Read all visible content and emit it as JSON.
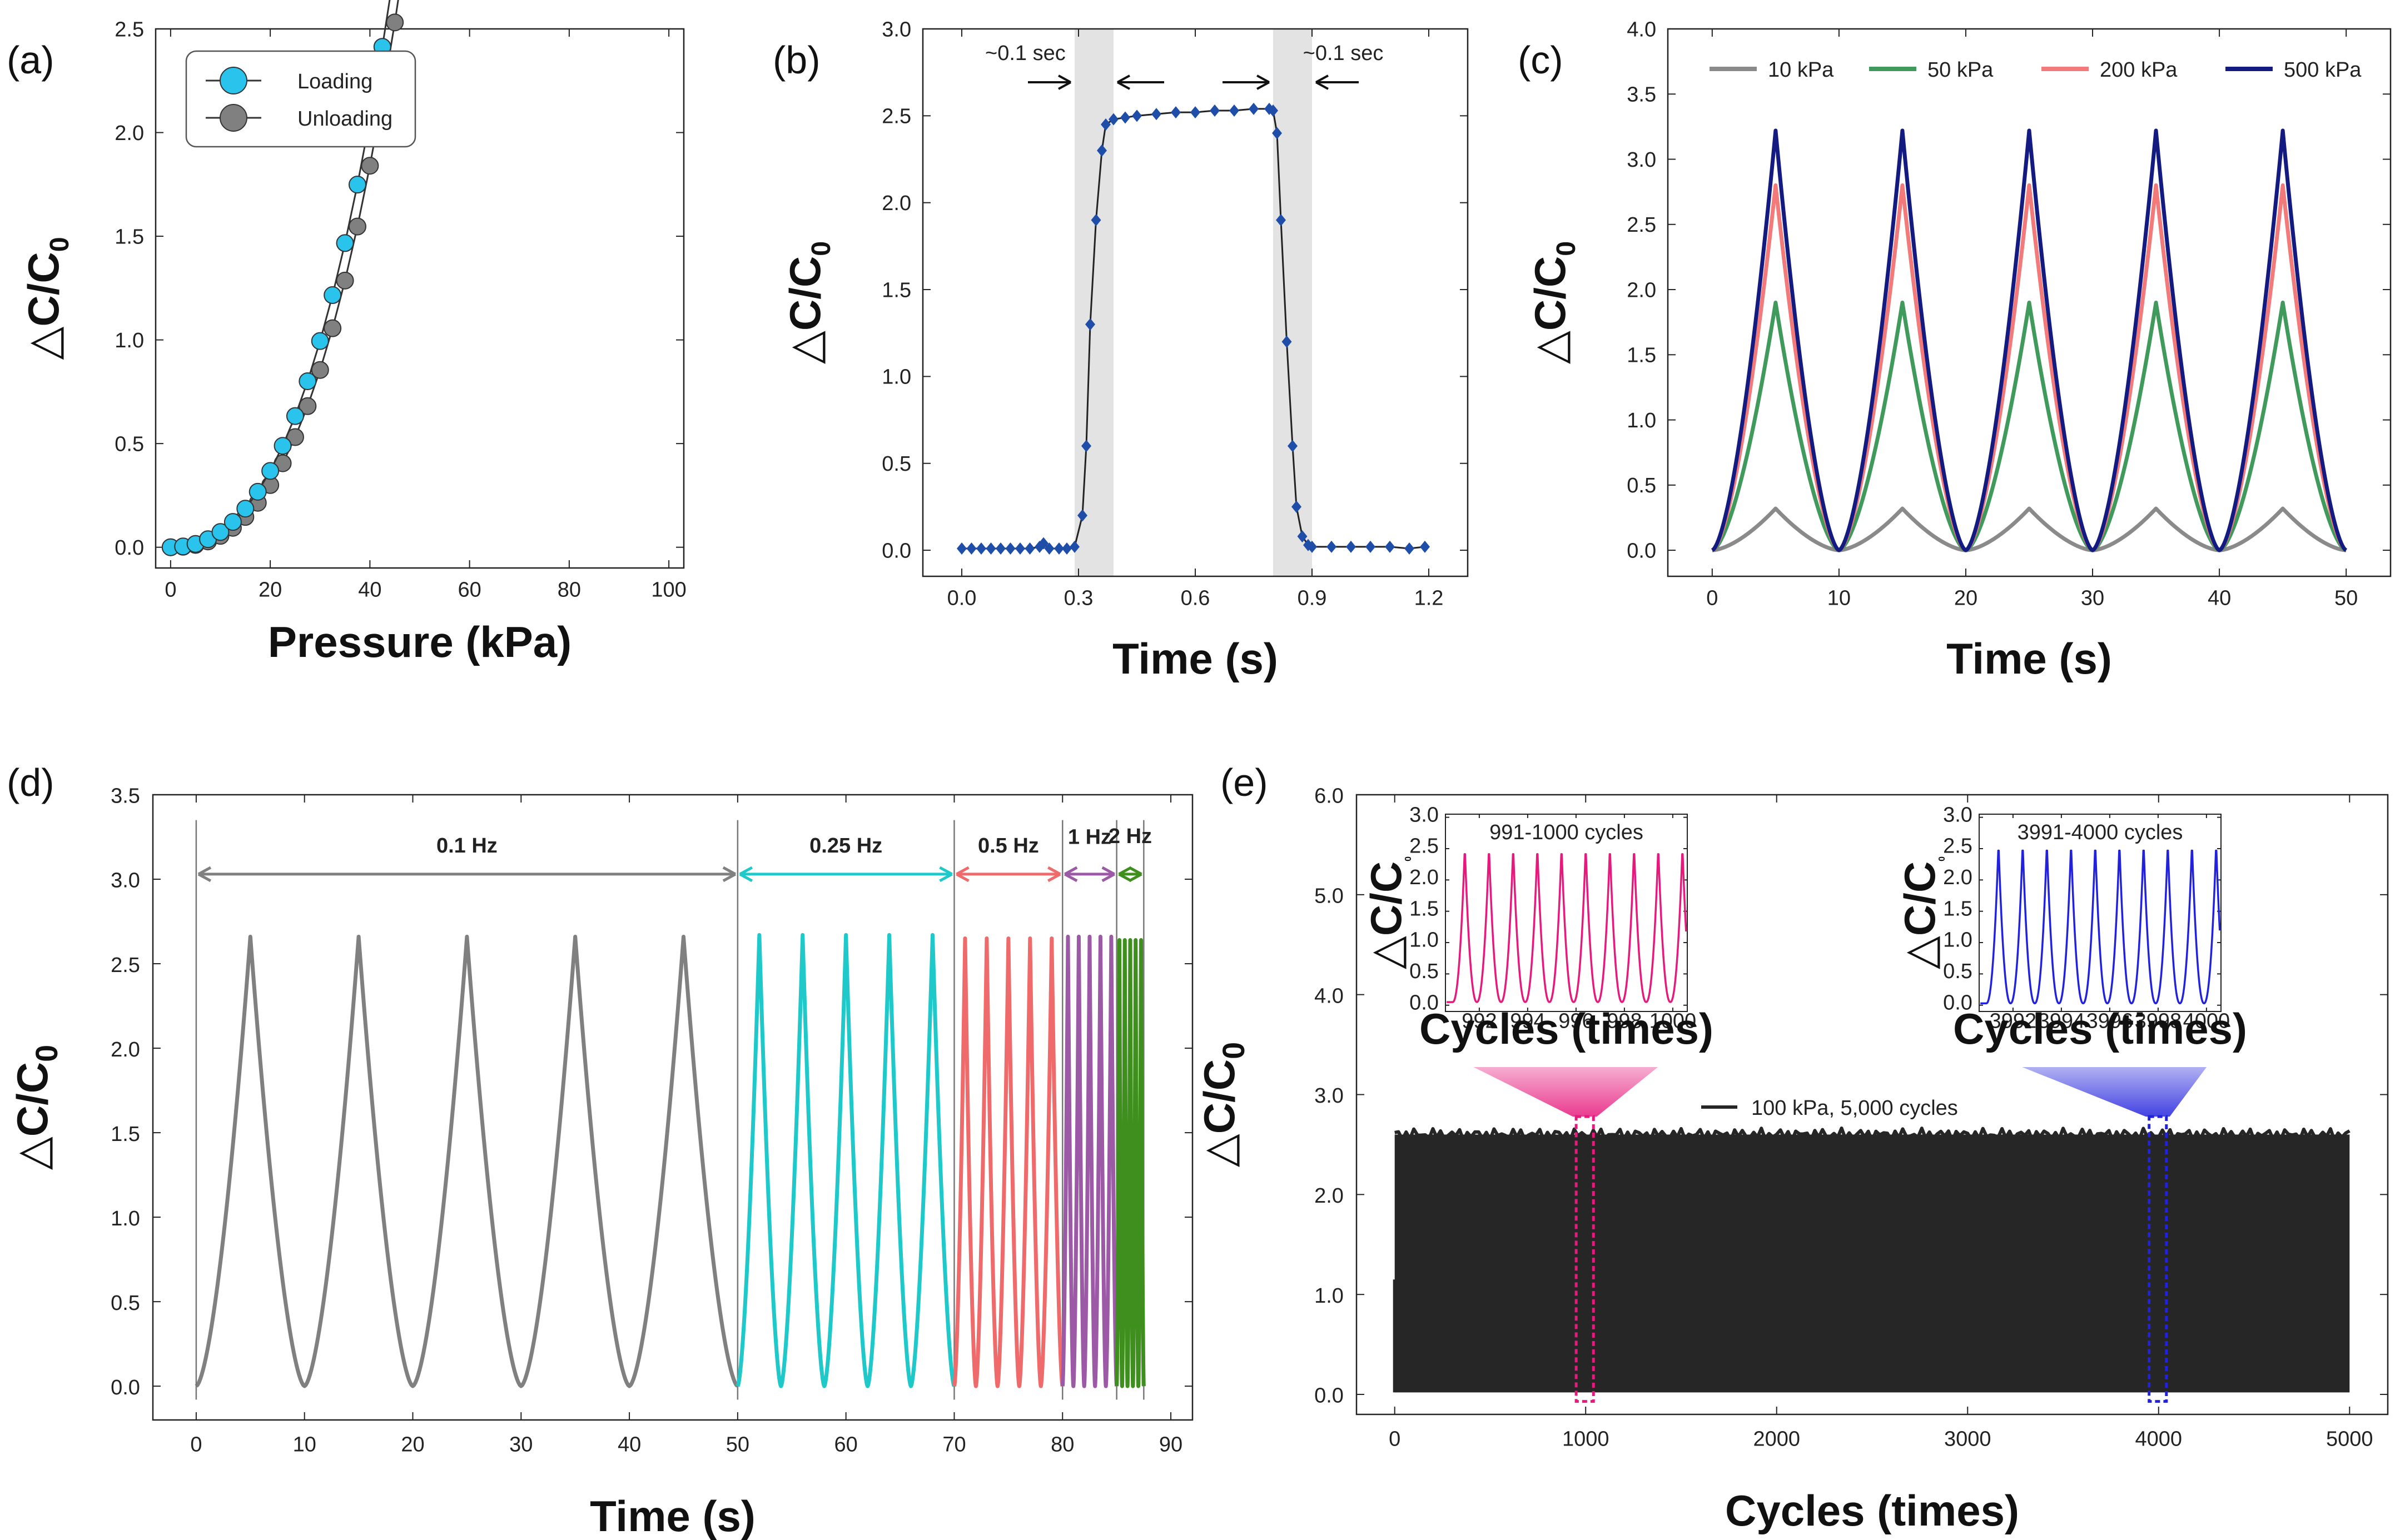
{
  "chart_data": [
    {
      "id": "a",
      "panel_label": "(a)",
      "type": "scatter",
      "xlabel": "Pressure (kPa)",
      "ylabel": "△C/C0",
      "ylabel_main": "△C/C",
      "ylabel_sub": "0",
      "xlim": [
        -3,
        103
      ],
      "ylim": [
        -0.1,
        2.5
      ],
      "xticks": [
        0,
        20,
        40,
        60,
        80,
        100
      ],
      "xtick_labels": [
        "0",
        "20",
        "40",
        "60",
        "80",
        "100"
      ],
      "yticks": [
        0.0,
        0.5,
        1.0,
        1.5,
        2.0,
        2.5
      ],
      "ytick_labels": [
        "0.0",
        "0.5",
        "1.0",
        "1.5",
        "2.0",
        "2.5"
      ],
      "legend": [
        "Loading",
        "Unloading"
      ],
      "legend_position": "top-left",
      "series": [
        {
          "name": "Loading",
          "color": "#29c3ec",
          "formula_points": {
            "x_start": 0,
            "x_end": 100,
            "step": 2.5,
            "a": 0.00055,
            "b": 1.85e-05
          }
        },
        {
          "name": "Unloading",
          "color": "#808080",
          "formula_points": {
            "x_start": 0,
            "x_end": 100,
            "step": 2.5,
            "a": 0.00035,
            "b": 2e-05
          }
        }
      ]
    },
    {
      "id": "b",
      "panel_label": "(b)",
      "type": "line",
      "xlabel": "Time (s)",
      "ylabel": "△C/C0",
      "ylabel_main": "△C/C",
      "ylabel_sub": "0",
      "xlim": [
        -0.1,
        1.3
      ],
      "ylim": [
        -0.15,
        3.0
      ],
      "xticks": [
        0.0,
        0.3,
        0.6,
        0.9,
        1.2
      ],
      "xtick_labels": [
        "0.0",
        "0.3",
        "0.6",
        "0.9",
        "1.2"
      ],
      "yticks": [
        0.0,
        0.5,
        1.0,
        1.5,
        2.0,
        2.5,
        3.0
      ],
      "ytick_labels": [
        "0.0",
        "0.5",
        "1.0",
        "1.5",
        "2.0",
        "2.5",
        "3.0"
      ],
      "annotations": [
        "~0.1 sec",
        "~0.1 sec"
      ],
      "shaded_regions": [
        [
          0.29,
          0.39
        ],
        [
          0.8,
          0.9
        ]
      ],
      "color": "#1f4ea8",
      "points": [
        [
          0.0,
          0.01
        ],
        [
          0.025,
          0.01
        ],
        [
          0.05,
          0.01
        ],
        [
          0.075,
          0.01
        ],
        [
          0.1,
          0.01
        ],
        [
          0.125,
          0.01
        ],
        [
          0.15,
          0.01
        ],
        [
          0.175,
          0.01
        ],
        [
          0.2,
          0.02
        ],
        [
          0.21,
          0.04
        ],
        [
          0.225,
          0.01
        ],
        [
          0.25,
          0.01
        ],
        [
          0.27,
          0.01
        ],
        [
          0.29,
          0.02
        ],
        [
          0.31,
          0.2
        ],
        [
          0.32,
          0.6
        ],
        [
          0.33,
          1.3
        ],
        [
          0.345,
          1.9
        ],
        [
          0.36,
          2.3
        ],
        [
          0.37,
          2.45
        ],
        [
          0.39,
          2.48
        ],
        [
          0.42,
          2.49
        ],
        [
          0.45,
          2.5
        ],
        [
          0.5,
          2.51
        ],
        [
          0.55,
          2.52
        ],
        [
          0.6,
          2.52
        ],
        [
          0.65,
          2.53
        ],
        [
          0.7,
          2.53
        ],
        [
          0.75,
          2.54
        ],
        [
          0.79,
          2.54
        ],
        [
          0.8,
          2.53
        ],
        [
          0.81,
          2.4
        ],
        [
          0.82,
          1.9
        ],
        [
          0.835,
          1.2
        ],
        [
          0.85,
          0.6
        ],
        [
          0.86,
          0.25
        ],
        [
          0.875,
          0.08
        ],
        [
          0.89,
          0.03
        ],
        [
          0.9,
          0.02
        ],
        [
          0.95,
          0.02
        ],
        [
          1.0,
          0.02
        ],
        [
          1.05,
          0.02
        ],
        [
          1.1,
          0.02
        ],
        [
          1.15,
          0.01
        ],
        [
          1.19,
          0.02
        ]
      ]
    },
    {
      "id": "c",
      "panel_label": "(c)",
      "type": "line",
      "xlabel": "Time (s)",
      "ylabel": "△C/C0",
      "ylabel_main": "△C/C",
      "ylabel_sub": "0",
      "xlim": [
        -3.5,
        53.5
      ],
      "ylim": [
        -0.2,
        4.0
      ],
      "xticks": [
        0,
        10,
        20,
        30,
        40,
        50
      ],
      "xtick_labels": [
        "0",
        "10",
        "20",
        "30",
        "40",
        "50"
      ],
      "yticks": [
        0.0,
        0.5,
        1.0,
        1.5,
        2.0,
        2.5,
        3.0,
        3.5,
        4.0
      ],
      "ytick_labels": [
        "0.0",
        "0.5",
        "1.0",
        "1.5",
        "2.0",
        "2.5",
        "3.0",
        "3.5",
        "4.0"
      ],
      "legend": [
        "10 kPa",
        "50 kPa",
        "200 kPa",
        "500 kPa"
      ],
      "legend_position": "top",
      "series": [
        {
          "name": "10 kPa",
          "color": "#8a8a8a",
          "peak": 0.32,
          "period": 10,
          "cycles": 5
        },
        {
          "name": "50 kPa",
          "color": "#3f9a5c",
          "peak": 1.9,
          "period": 10,
          "cycles": 5
        },
        {
          "name": "200 kPa",
          "color": "#f27a7a",
          "peak": 2.8,
          "period": 10,
          "cycles": 5
        },
        {
          "name": "500 kPa",
          "color": "#141b80",
          "peak": 3.22,
          "period": 10,
          "cycles": 5
        }
      ]
    },
    {
      "id": "d",
      "panel_label": "(d)",
      "type": "line",
      "xlabel": "Time (s)",
      "ylabel": "△C/C0",
      "ylabel_main": "△C/C",
      "ylabel_sub": "0",
      "xlim": [
        -4,
        92
      ],
      "ylim": [
        -0.2,
        3.5
      ],
      "xticks": [
        0,
        10,
        20,
        30,
        40,
        50,
        60,
        70,
        80,
        90
      ],
      "xtick_labels": [
        "0",
        "10",
        "20",
        "30",
        "40",
        "50",
        "60",
        "70",
        "80",
        "90"
      ],
      "yticks": [
        0.0,
        0.5,
        1.0,
        1.5,
        2.0,
        2.5,
        3.0,
        3.5
      ],
      "ytick_labels": [
        "0.0",
        "0.5",
        "1.0",
        "1.5",
        "2.0",
        "2.5",
        "3.0",
        "3.5"
      ],
      "segments": [
        {
          "label": "0.1 Hz",
          "color": "#808080",
          "start": 0,
          "end": 50,
          "period": 10,
          "peak": 2.66
        },
        {
          "label": "0.25 Hz",
          "color": "#1fc9c9",
          "start": 50,
          "end": 70,
          "period": 4,
          "peak": 2.67
        },
        {
          "label": "0.5 Hz",
          "color": "#ef6a6a",
          "start": 70,
          "end": 80,
          "period": 2,
          "peak": 2.65
        },
        {
          "label": "1 Hz",
          "color": "#9c5aa6",
          "start": 80,
          "end": 85,
          "period": 1,
          "peak": 2.66
        },
        {
          "label": "2 Hz",
          "color": "#3f8f1f",
          "start": 85,
          "end": 87.5,
          "period": 0.5,
          "peak": 2.64
        }
      ]
    },
    {
      "id": "e",
      "panel_label": "(e)",
      "type": "area",
      "xlabel": "Cycles (times)",
      "ylabel": "△C/C0",
      "ylabel_main": "△C/C",
      "ylabel_sub": "0",
      "xlim": [
        -200,
        5200
      ],
      "ylim": [
        -0.2,
        6.0
      ],
      "xticks": [
        0,
        1000,
        2000,
        3000,
        4000,
        5000
      ],
      "xtick_labels": [
        "0",
        "1000",
        "2000",
        "3000",
        "4000",
        "5000"
      ],
      "yticks": [
        0.0,
        1.0,
        2.0,
        3.0,
        4.0,
        5.0,
        6.0
      ],
      "ytick_labels": [
        "0.0",
        "1.0",
        "2.0",
        "3.0",
        "4.0",
        "5.0",
        "6.0"
      ],
      "legend": [
        "100 kPa, 5,000 cycles"
      ],
      "series": [
        {
          "name": "100 kPa, 5,000 cycles",
          "color": "#262626",
          "min": 0.02,
          "max": 2.6,
          "cycles": 5000
        }
      ],
      "highlight_regions": [
        {
          "from": 991,
          "to": 1000,
          "color": "#e6197c"
        },
        {
          "from": 3991,
          "to": 4000,
          "color": "#2222dd"
        }
      ],
      "insets": [
        {
          "title": "991-1000 cycles",
          "color": "#e6197c",
          "xlabel": "Cycles (times)",
          "ylabel": "△C/C0",
          "ylabel_main": "△C/C",
          "ylabel_sub": "0",
          "xlim": [
            990.6,
            1000.6
          ],
          "ylim": [
            -0.1,
            3.05
          ],
          "xticks": [
            992,
            994,
            996,
            998,
            1000
          ],
          "xtick_labels": [
            "992",
            "994",
            "996",
            "998",
            "1000"
          ],
          "yticks": [
            0.0,
            0.5,
            1.0,
            1.5,
            2.0,
            2.5,
            3.0
          ],
          "ytick_labels": [
            "0.0",
            "0.5",
            "1.0",
            "1.5",
            "2.0",
            "2.5",
            "3.0"
          ],
          "peaks_at": [
            991.4,
            992.4,
            993.4,
            994.4,
            995.4,
            996.4,
            997.4,
            998.4,
            999.4,
            1000.4
          ],
          "peak": 2.52,
          "base": 0.05
        },
        {
          "title": "3991-4000 cycles",
          "color": "#2222dd",
          "xlabel": "Cycles (times)",
          "ylabel": "△C/C0",
          "ylabel_main": "△C/C",
          "ylabel_sub": "0",
          "xlim": [
            3990.6,
            4000.6
          ],
          "ylim": [
            -0.1,
            3.05
          ],
          "xticks": [
            3992,
            3994,
            3996,
            3998,
            4000
          ],
          "xtick_labels": [
            "3992",
            "3994",
            "3996",
            "3998",
            "4000"
          ],
          "yticks": [
            0.0,
            0.5,
            1.0,
            1.5,
            2.0,
            2.5,
            3.0
          ],
          "ytick_labels": [
            "0.0",
            "0.5",
            "1.0",
            "1.5",
            "2.0",
            "2.5",
            "3.0"
          ],
          "peaks_at": [
            3991.4,
            3992.4,
            3993.4,
            3994.4,
            3995.4,
            3996.4,
            3997.4,
            3998.4,
            3999.4,
            4000.4
          ],
          "peak": 2.58,
          "base": 0.03
        }
      ]
    }
  ]
}
